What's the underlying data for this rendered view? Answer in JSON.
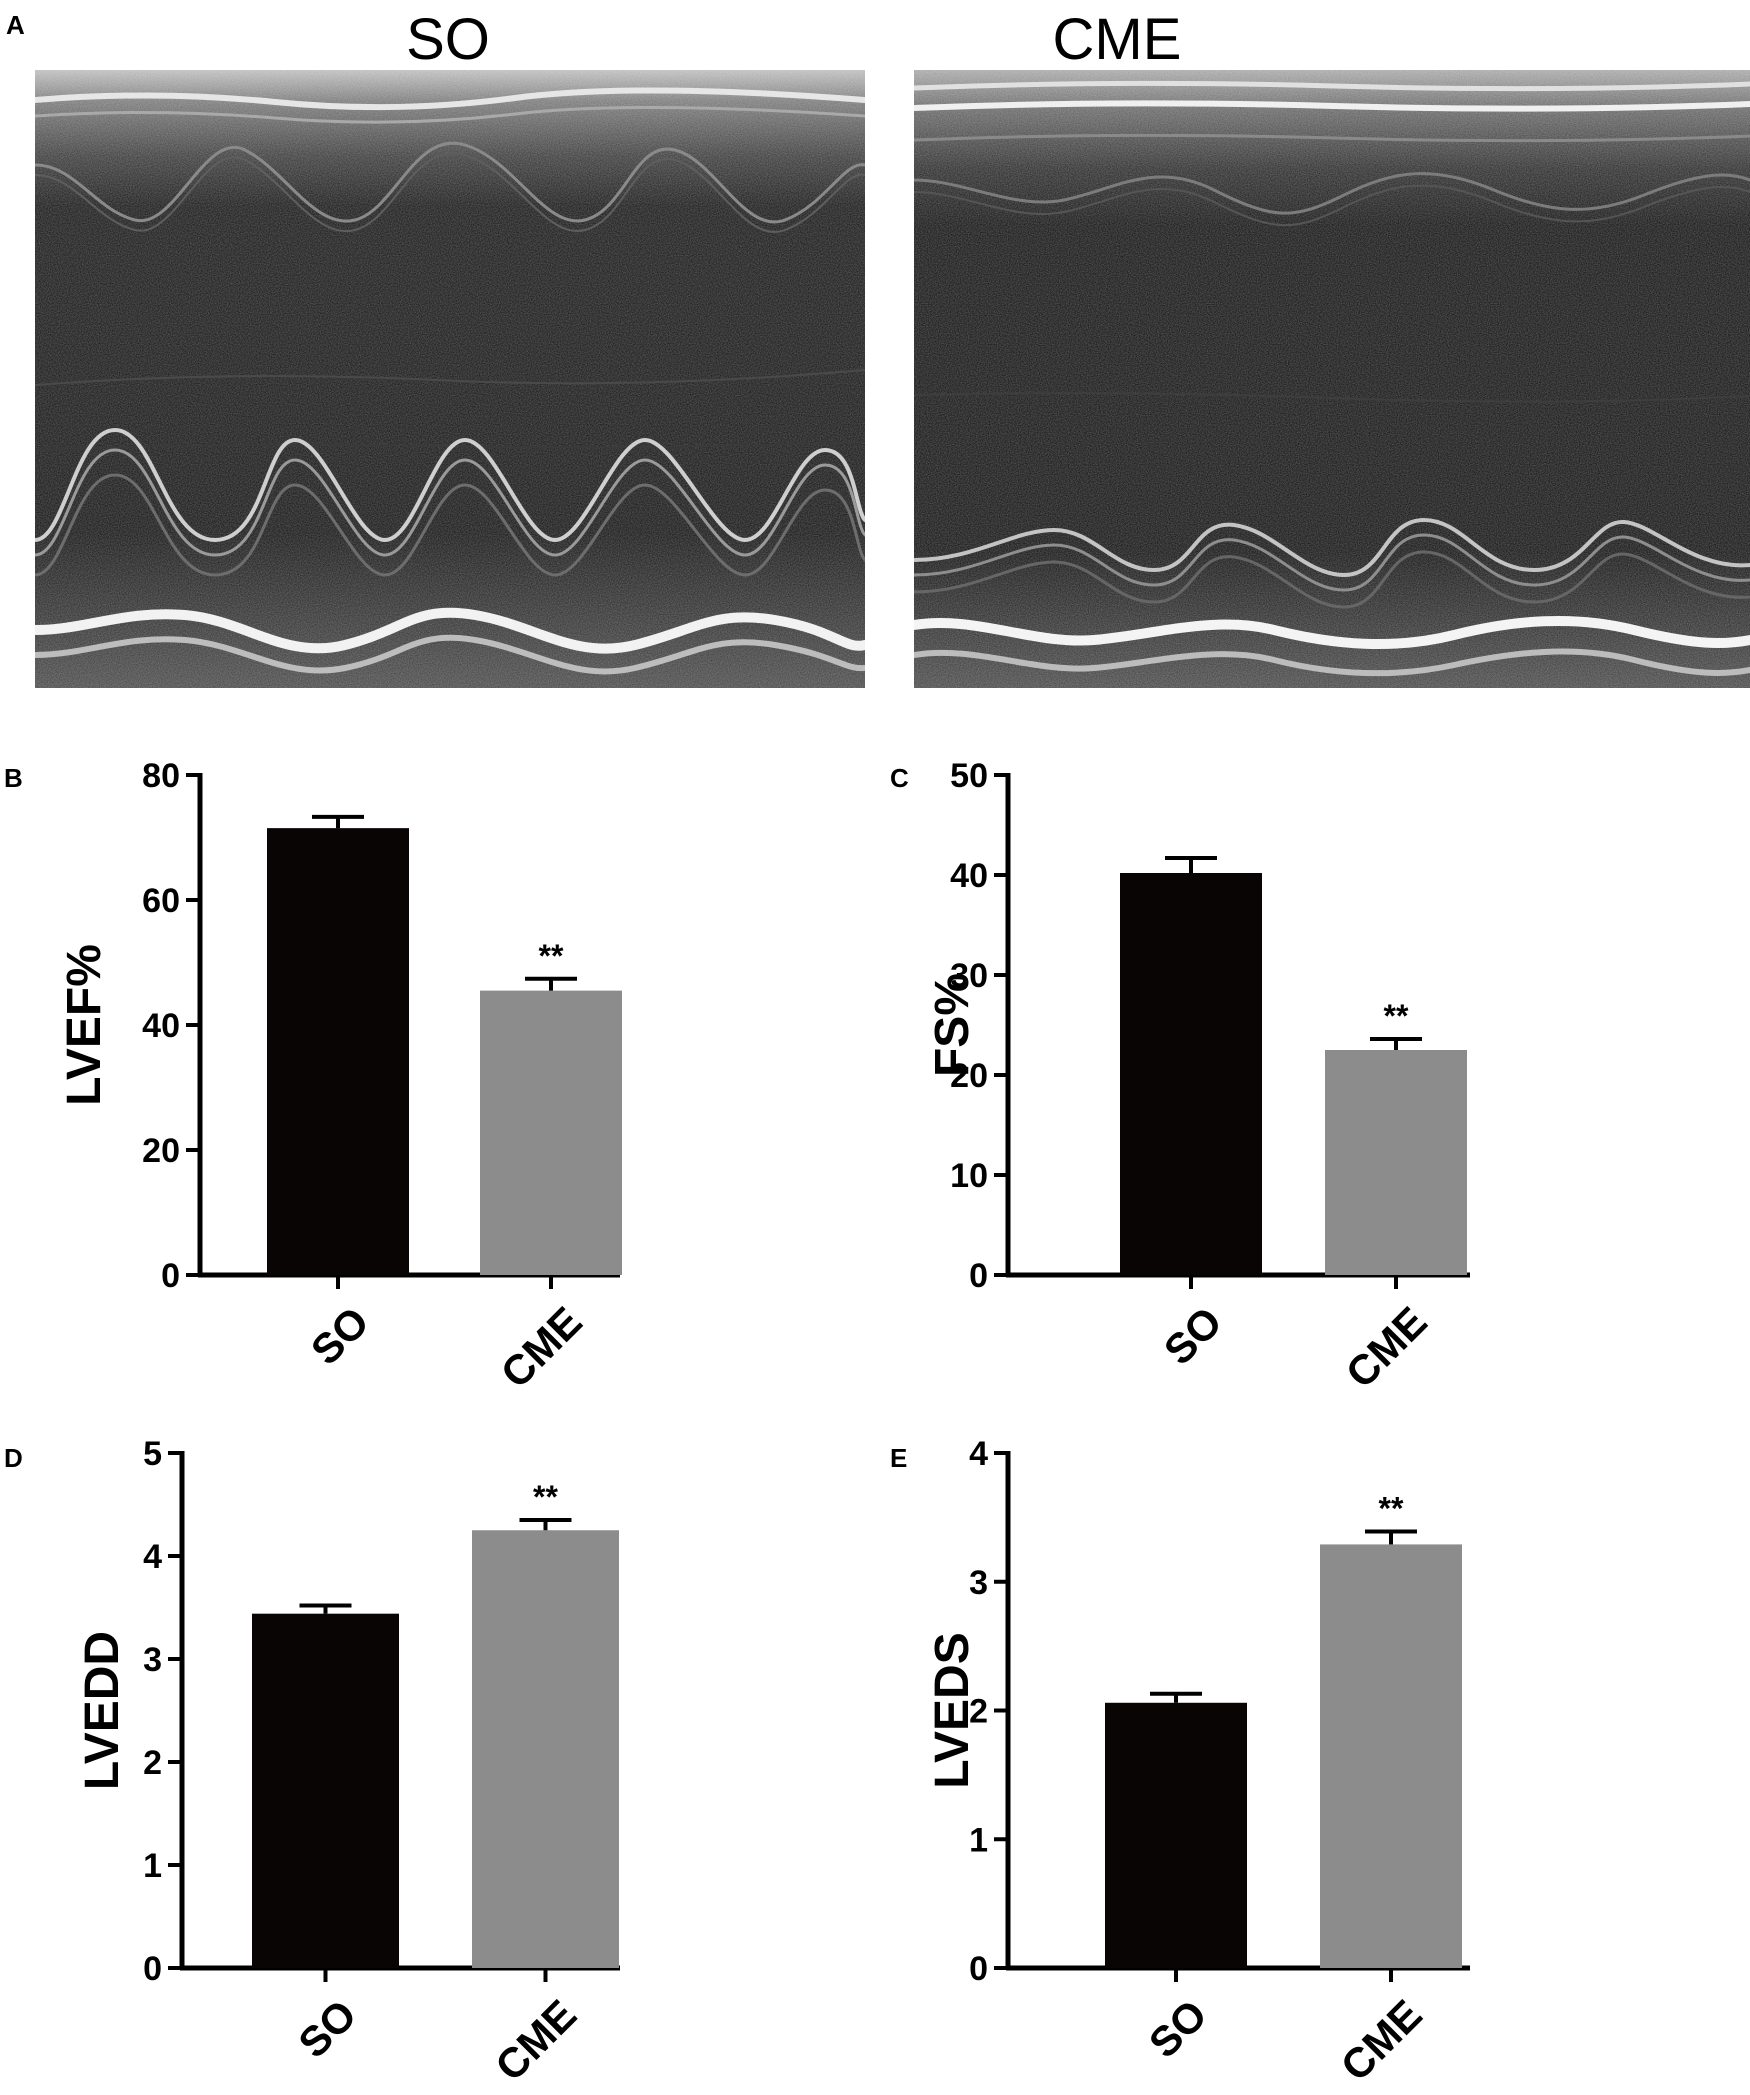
{
  "panels": {
    "a": "A",
    "b": "B",
    "c": "C",
    "d": "D",
    "e": "E"
  },
  "echo_images": [
    {
      "title": "SO",
      "description": "M-mode echocardiogram, sham-operated"
    },
    {
      "title": "CME",
      "description": "M-mode echocardiogram, coronary microembolization"
    }
  ],
  "colors": {
    "so_bar": "#0a0505",
    "cme_bar": "#8c8c8c",
    "axis": "#000000"
  },
  "chart_data": [
    {
      "type": "bar",
      "panel": "B",
      "ylabel": "LVEF%",
      "categories": [
        "SO",
        "CME"
      ],
      "values": [
        71.5,
        45.5
      ],
      "errors": [
        1.8,
        1.9
      ],
      "ylim": [
        0,
        80
      ],
      "yticks": [
        0,
        20,
        40,
        60,
        80
      ],
      "annotations": [
        "",
        "**"
      ]
    },
    {
      "type": "bar",
      "panel": "C",
      "ylabel": "FS%",
      "categories": [
        "SO",
        "CME"
      ],
      "values": [
        40.2,
        22.5
      ],
      "errors": [
        1.5,
        1.1
      ],
      "ylim": [
        0,
        50
      ],
      "yticks": [
        0,
        10,
        20,
        30,
        40,
        50
      ],
      "annotations": [
        "",
        "**"
      ]
    },
    {
      "type": "bar",
      "panel": "D",
      "ylabel": "LVEDD",
      "categories": [
        "SO",
        "CME"
      ],
      "values": [
        3.44,
        4.25
      ],
      "errors": [
        0.08,
        0.1
      ],
      "ylim": [
        0,
        5
      ],
      "yticks": [
        0,
        1,
        2,
        3,
        4,
        5
      ],
      "annotations": [
        "",
        "**"
      ]
    },
    {
      "type": "bar",
      "panel": "E",
      "ylabel": "LVEDS",
      "categories": [
        "SO",
        "CME"
      ],
      "values": [
        2.06,
        3.29
      ],
      "errors": [
        0.07,
        0.1
      ],
      "ylim": [
        0,
        4
      ],
      "yticks": [
        0,
        1,
        2,
        3,
        4
      ],
      "annotations": [
        "",
        "**"
      ]
    }
  ]
}
